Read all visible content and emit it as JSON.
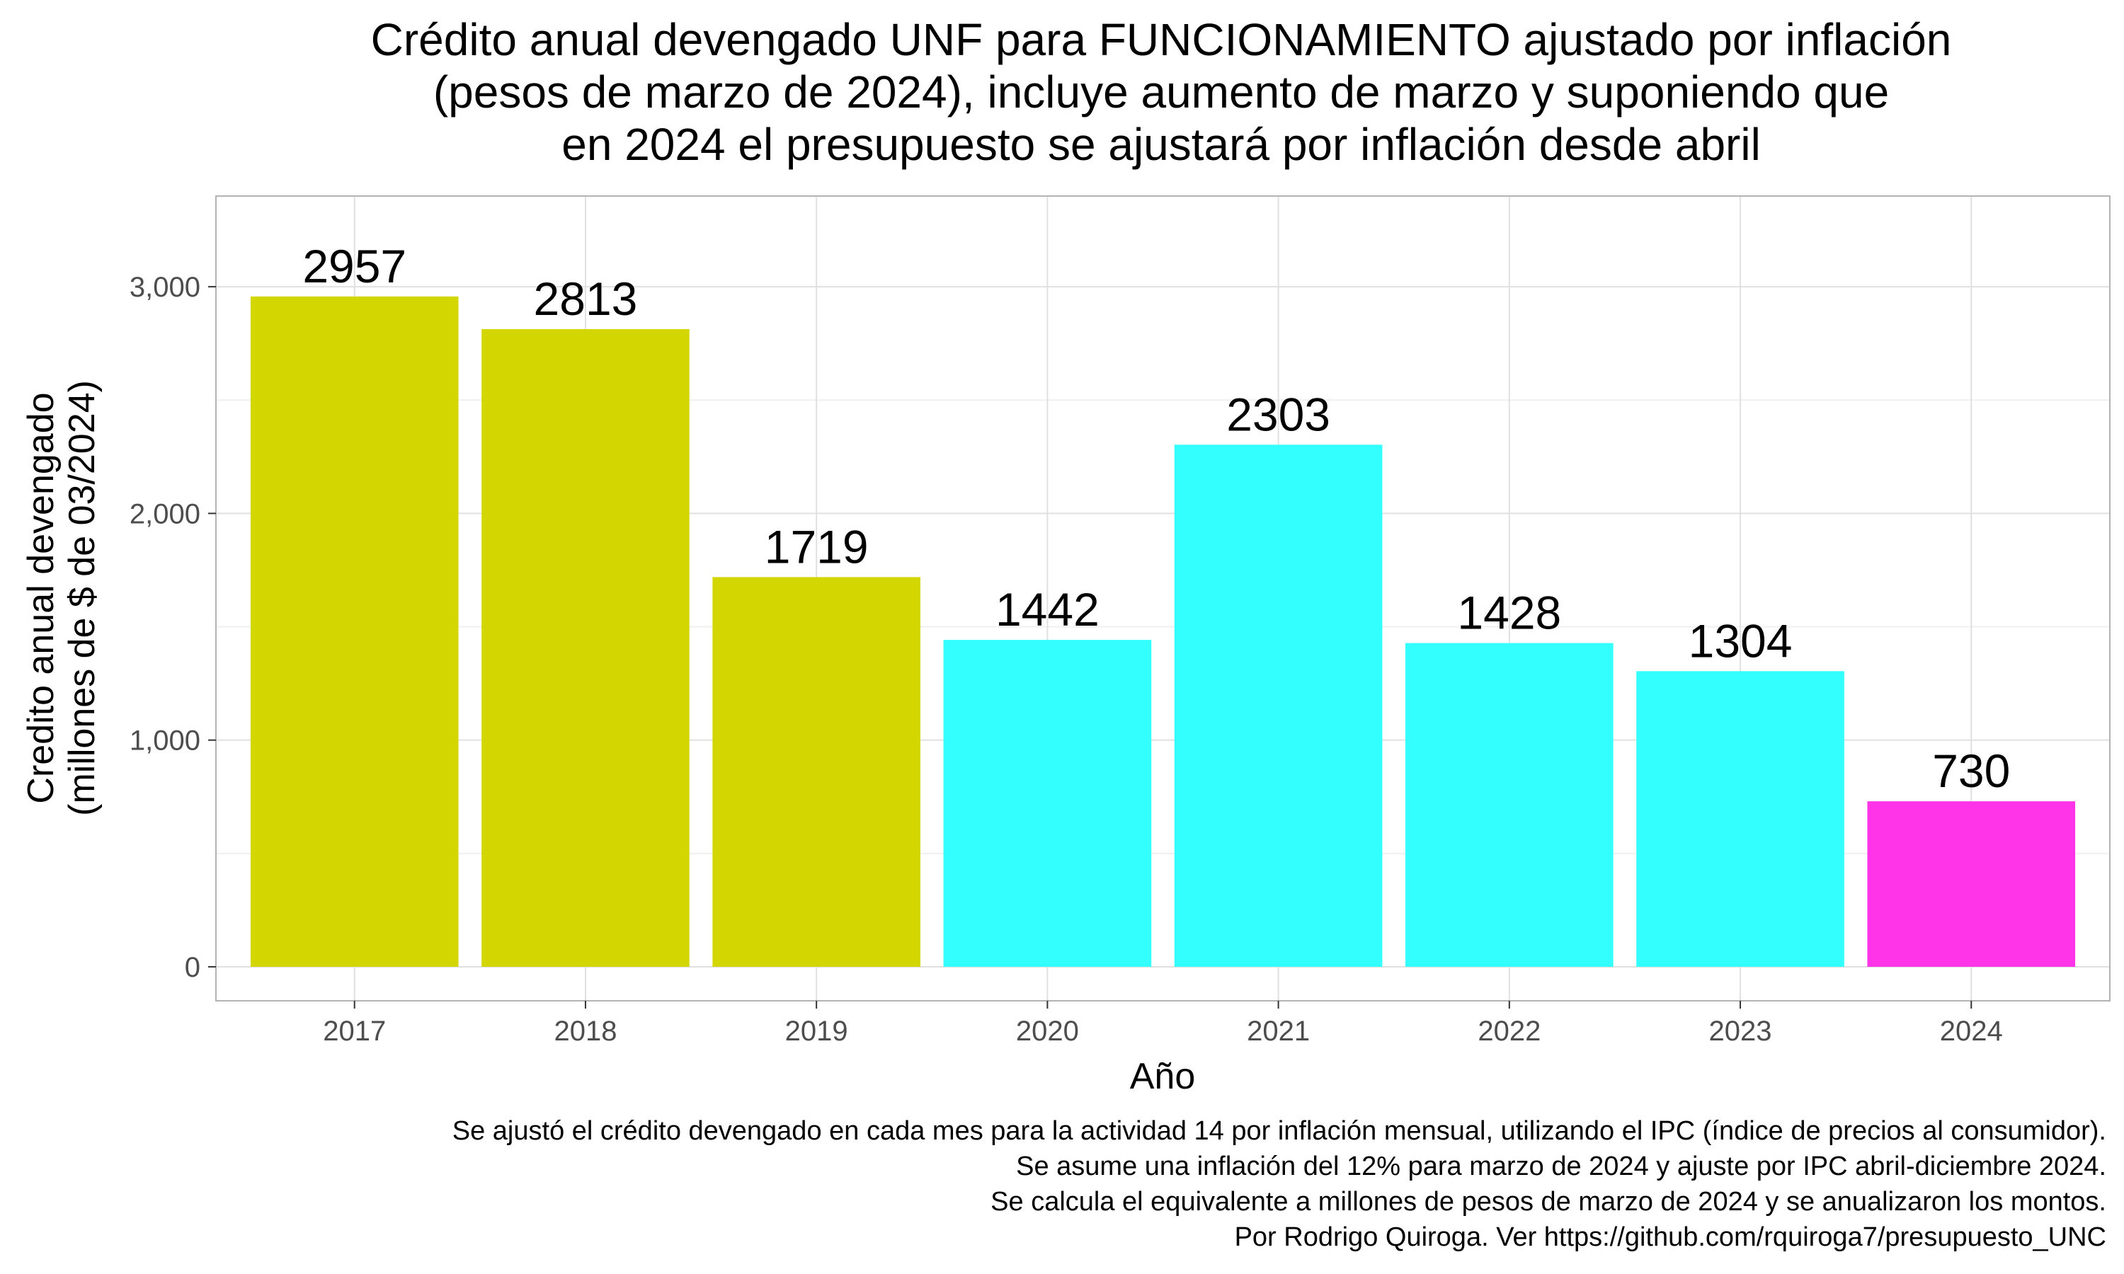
{
  "chart_data": {
    "type": "bar",
    "title": [
      "Crédito anual devengado UNF para FUNCIONAMIENTO ajustado por inflación",
      "(pesos de marzo de 2024), incluye aumento de marzo y suponiendo que",
      "en 2024 el presupuesto se ajustará por inflación desde abril"
    ],
    "xlabel": "Año",
    "ylabel": [
      "Credito anual devengado",
      "(millones de $ de 03/2024)"
    ],
    "categories": [
      "2017",
      "2018",
      "2019",
      "2020",
      "2021",
      "2022",
      "2023",
      "2024"
    ],
    "values": [
      2957,
      2813,
      1719,
      1442,
      2303,
      1428,
      1304,
      730
    ],
    "data_labels": [
      "2957",
      "2813",
      "1719",
      "1442",
      "2303",
      "1428",
      "1304",
      "730"
    ],
    "bar_colors": [
      "#d3d600",
      "#d3d600",
      "#d3d600",
      "#33ffff",
      "#33ffff",
      "#33ffff",
      "#33ffff",
      "#ff33e8"
    ],
    "yticks": [
      0,
      1000,
      2000,
      3000
    ],
    "ytick_labels": [
      "0",
      "1,000",
      "2,000",
      "3,000"
    ],
    "ylim": [
      -150,
      3400
    ],
    "grid": true,
    "legend": "none",
    "caption": [
      "Se ajustó el crédito devengado en cada mes para la actividad 14 por inflación mensual, utilizando el IPC (índice de precios al consumidor).",
      "Se asume una inflación del 12% para marzo de 2024 y ajuste por IPC abril-diciembre 2024.",
      "Se calcula el equivalente a millones de pesos de marzo de 2024 y se anualizaron los montos.",
      "Por Rodrigo Quiroga. Ver https://github.com/rquiroga7/presupuesto_UNC"
    ]
  },
  "colors": {
    "panel_border": "#b3b3b3",
    "grid_major": "#e0e0e0",
    "grid_minor": "#f0f0f0",
    "tick_text": "#4d4d4d"
  }
}
